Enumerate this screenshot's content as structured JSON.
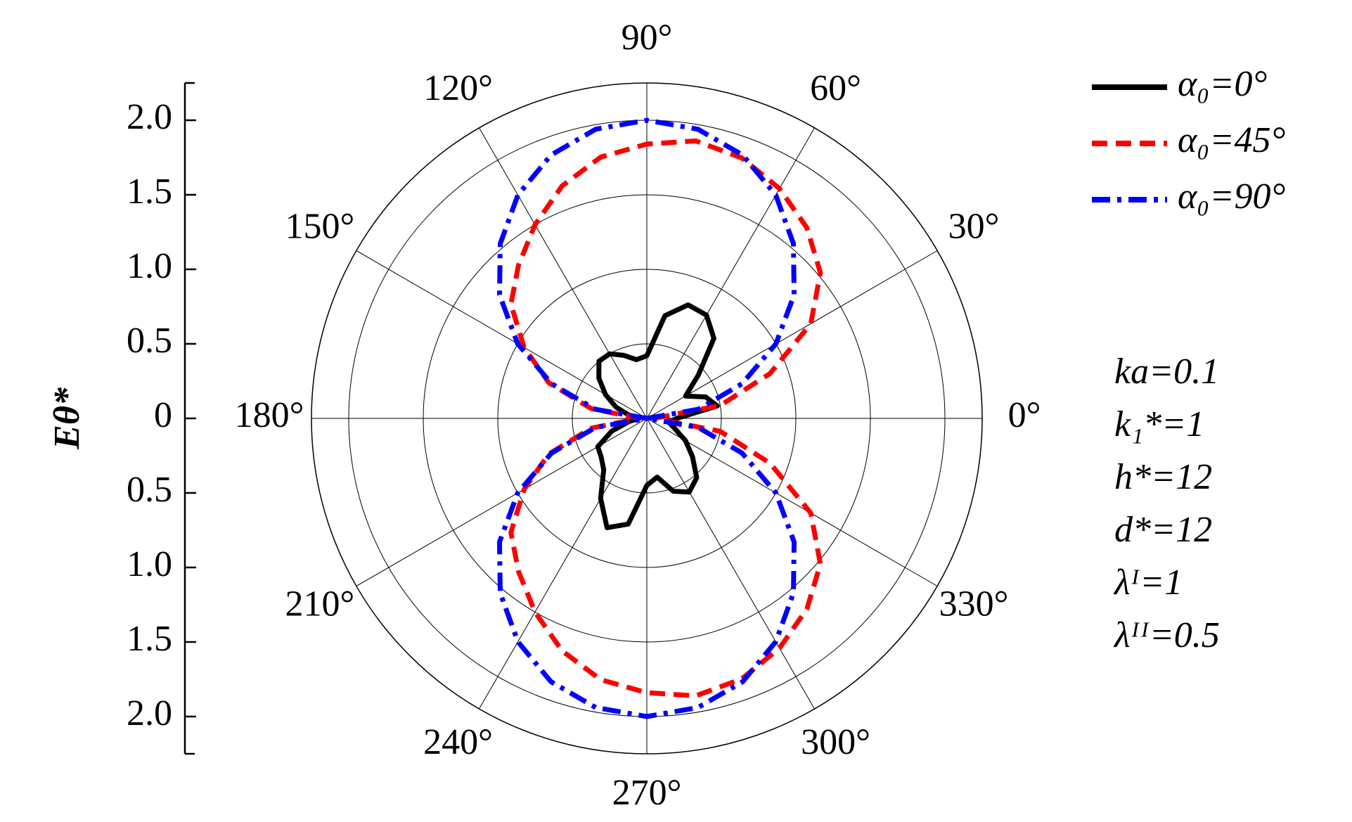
{
  "chart_data": {
    "type": "polar",
    "r_label": "Eθ*",
    "rlim": [
      0,
      2.25
    ],
    "rticks": [
      0,
      {
        "value": 0.5,
        "label": "0.5"
      },
      {
        "value": 1,
        "label": "1.0"
      },
      {
        "value": 1.5,
        "label": "1.5"
      },
      {
        "value": 2,
        "label": "2.0"
      }
    ],
    "thetaticks": [
      {
        "value": 0,
        "label": "0°"
      },
      {
        "value": 30,
        "label": "30°"
      },
      {
        "value": 60,
        "label": "60°"
      },
      {
        "value": 90,
        "label": "90°"
      },
      {
        "value": 120,
        "label": "120°"
      },
      {
        "value": 150,
        "label": "150°"
      },
      {
        "value": 180,
        "label": "180°"
      },
      {
        "value": 210,
        "label": "210°"
      },
      {
        "value": 240,
        "label": "240°"
      },
      {
        "value": 270,
        "label": "270°"
      },
      {
        "value": 300,
        "label": "300°"
      },
      {
        "value": 330,
        "label": "330°"
      }
    ],
    "grid": true,
    "theta": [
      0,
      10,
      20,
      30,
      40,
      50,
      60,
      70,
      80,
      90,
      100,
      110,
      120,
      130,
      140,
      150,
      160,
      170,
      180,
      190,
      200,
      210,
      220,
      230,
      240,
      250,
      260,
      270,
      280,
      290,
      300,
      310,
      320,
      330,
      340,
      350
    ],
    "series": [
      {
        "name": "α₀=0°",
        "color": "#000000",
        "dash": "solid",
        "values": [
          0.2,
          0.48,
          0.42,
          0.3,
          0.45,
          0.7,
          0.8,
          0.81,
          0.7,
          0.42,
          0.4,
          0.45,
          0.5,
          0.5,
          0.42,
          0.32,
          0.22,
          0.12,
          0.05,
          0.12,
          0.25,
          0.38,
          0.4,
          0.45,
          0.62,
          0.78,
          0.72,
          0.45,
          0.4,
          0.52,
          0.57,
          0.52,
          0.4,
          0.3,
          0.2,
          0.15
        ]
      },
      {
        "name": "α₀=45°",
        "color": "#ff0000",
        "dash": "dashed",
        "values": [
          0.05,
          0.5,
          0.88,
          1.27,
          1.52,
          1.67,
          1.78,
          1.86,
          1.89,
          1.84,
          1.78,
          1.66,
          1.5,
          1.34,
          1.19,
          0.95,
          0.7,
          0.38,
          0.05,
          0.38,
          0.7,
          0.95,
          1.19,
          1.34,
          1.5,
          1.66,
          1.78,
          1.84,
          1.89,
          1.86,
          1.78,
          1.67,
          1.52,
          1.27,
          0.88,
          0.5
        ]
      },
      {
        "name": "α₀=90°",
        "color": "#0000ff",
        "dash": "dashdot",
        "values": [
          0,
          0.35,
          0.68,
          1.0,
          1.29,
          1.53,
          1.73,
          1.88,
          1.97,
          2.0,
          1.97,
          1.88,
          1.73,
          1.53,
          1.29,
          1.0,
          0.68,
          0.35,
          0,
          0.35,
          0.68,
          1.0,
          1.29,
          1.53,
          1.73,
          1.88,
          1.97,
          2.0,
          1.97,
          1.88,
          1.73,
          1.53,
          1.29,
          1.0,
          0.68,
          0.35
        ]
      }
    ],
    "legend": "upper right",
    "annotations": [
      "ka=0.1",
      "k₁*=1",
      "h*=12",
      "d*=12",
      "λᴵ=1",
      "λᴵᴵ=0.5"
    ]
  }
}
